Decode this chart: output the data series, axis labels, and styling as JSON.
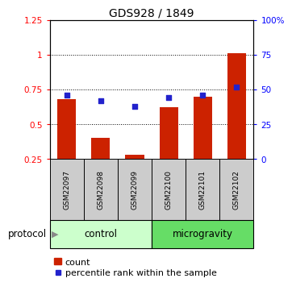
{
  "title": "GDS928 / 1849",
  "samples": [
    "GSM22097",
    "GSM22098",
    "GSM22099",
    "GSM22100",
    "GSM22101",
    "GSM22102"
  ],
  "bar_values": [
    0.68,
    0.4,
    0.28,
    0.62,
    0.7,
    1.01
  ],
  "percentile_values": [
    46,
    42,
    38,
    44,
    46,
    52
  ],
  "bar_color": "#cc2200",
  "percentile_color": "#2222cc",
  "ylim_left": [
    0.25,
    1.25
  ],
  "ylim_right": [
    0,
    100
  ],
  "yticks_left": [
    0.25,
    0.5,
    0.75,
    1.0,
    1.25
  ],
  "ytick_labels_left": [
    "0.25",
    "0.5",
    "0.75",
    "1",
    "1.25"
  ],
  "yticks_right": [
    0,
    25,
    50,
    75,
    100
  ],
  "ytick_labels_right": [
    "0",
    "25",
    "50",
    "75",
    "100%"
  ],
  "grid_values": [
    0.5,
    0.75,
    1.0
  ],
  "protocol_groups": [
    {
      "label": "control",
      "start": 0,
      "end": 3,
      "color": "#ccffcc"
    },
    {
      "label": "microgravity",
      "start": 3,
      "end": 6,
      "color": "#66dd66"
    }
  ],
  "legend_count_label": "count",
  "legend_percentile_label": "percentile rank within the sample",
  "protocol_label": "protocol",
  "background_color": "#ffffff",
  "sample_box_color": "#cccccc",
  "bar_bottom": 0.25,
  "bar_width": 0.55
}
